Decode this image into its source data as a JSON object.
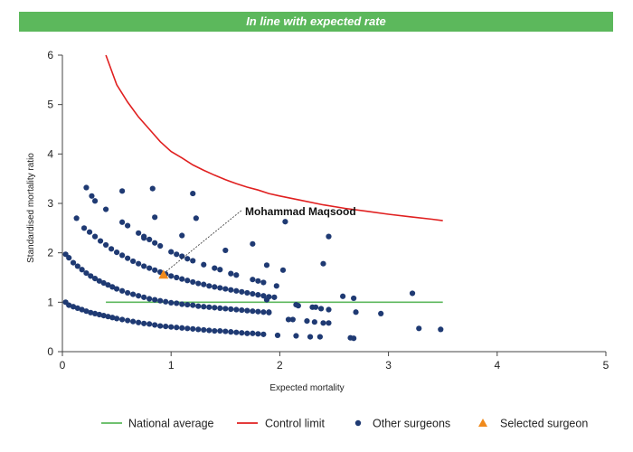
{
  "banner": {
    "text": "In line with expected rate",
    "color": "#5cb85c"
  },
  "colors": {
    "national": "#5cb85c",
    "control": "#e02020",
    "others": "#1f3a73",
    "selected": "#f08a1c"
  },
  "chart_data": {
    "type": "scatter",
    "xlabel": "Expected mortality",
    "ylabel": "Standardised mortality ratio",
    "xlim": [
      0,
      5
    ],
    "ylim": [
      0,
      6
    ],
    "xticks": [
      "0",
      "1",
      "2",
      "3",
      "4",
      "5"
    ],
    "yticks": [
      "0",
      "1",
      "2",
      "3",
      "4",
      "5",
      "6"
    ],
    "grid": false,
    "legend_position": "bottom",
    "legend": [
      "National average",
      "Control limit",
      "Other surgeons",
      "Selected surgeon"
    ],
    "national_average": {
      "name": "National average",
      "y": 1,
      "x_range": [
        0.4,
        3.5
      ]
    },
    "control_limit": {
      "name": "Control limit",
      "points": [
        [
          0.4,
          6.0
        ],
        [
          0.5,
          5.4
        ],
        [
          0.6,
          5.05
        ],
        [
          0.7,
          4.75
        ],
        [
          0.8,
          4.5
        ],
        [
          0.9,
          4.25
        ],
        [
          1.0,
          4.05
        ],
        [
          1.1,
          3.92
        ],
        [
          1.2,
          3.78
        ],
        [
          1.3,
          3.67
        ],
        [
          1.4,
          3.57
        ],
        [
          1.5,
          3.48
        ],
        [
          1.6,
          3.4
        ],
        [
          1.7,
          3.33
        ],
        [
          1.8,
          3.27
        ],
        [
          1.9,
          3.2
        ],
        [
          2.0,
          3.15
        ],
        [
          2.2,
          3.06
        ],
        [
          2.4,
          2.97
        ],
        [
          2.6,
          2.9
        ],
        [
          2.8,
          2.84
        ],
        [
          3.0,
          2.78
        ],
        [
          3.2,
          2.73
        ],
        [
          3.4,
          2.68
        ],
        [
          3.5,
          2.65
        ]
      ]
    },
    "selected_surgeon": {
      "name": "Mohammad Maqsood",
      "x": 0.93,
      "y": 1.55
    },
    "other_surgeons": [
      [
        0.03,
        1.0
      ],
      [
        0.06,
        0.94
      ],
      [
        0.1,
        0.91
      ],
      [
        0.14,
        0.88
      ],
      [
        0.18,
        0.85
      ],
      [
        0.22,
        0.82
      ],
      [
        0.26,
        0.79
      ],
      [
        0.3,
        0.77
      ],
      [
        0.34,
        0.75
      ],
      [
        0.38,
        0.73
      ],
      [
        0.42,
        0.71
      ],
      [
        0.46,
        0.69
      ],
      [
        0.5,
        0.67
      ],
      [
        0.55,
        0.65
      ],
      [
        0.6,
        0.63
      ],
      [
        0.65,
        0.61
      ],
      [
        0.7,
        0.59
      ],
      [
        0.75,
        0.57
      ],
      [
        0.8,
        0.56
      ],
      [
        0.85,
        0.54
      ],
      [
        0.9,
        0.52
      ],
      [
        0.95,
        0.51
      ],
      [
        1.0,
        0.5
      ],
      [
        1.05,
        0.49
      ],
      [
        1.1,
        0.48
      ],
      [
        1.15,
        0.47
      ],
      [
        1.2,
        0.46
      ],
      [
        1.25,
        0.45
      ],
      [
        1.3,
        0.44
      ],
      [
        1.35,
        0.43
      ],
      [
        1.4,
        0.42
      ],
      [
        1.45,
        0.42
      ],
      [
        1.5,
        0.41
      ],
      [
        1.55,
        0.4
      ],
      [
        1.6,
        0.39
      ],
      [
        1.65,
        0.38
      ],
      [
        1.7,
        0.37
      ],
      [
        1.75,
        0.37
      ],
      [
        1.8,
        0.36
      ],
      [
        1.85,
        0.35
      ],
      [
        0.03,
        1.97
      ],
      [
        0.06,
        1.9
      ],
      [
        0.1,
        1.8
      ],
      [
        0.14,
        1.73
      ],
      [
        0.18,
        1.66
      ],
      [
        0.22,
        1.59
      ],
      [
        0.26,
        1.53
      ],
      [
        0.3,
        1.48
      ],
      [
        0.34,
        1.43
      ],
      [
        0.38,
        1.39
      ],
      [
        0.42,
        1.35
      ],
      [
        0.46,
        1.31
      ],
      [
        0.5,
        1.27
      ],
      [
        0.55,
        1.23
      ],
      [
        0.6,
        1.19
      ],
      [
        0.65,
        1.16
      ],
      [
        0.7,
        1.13
      ],
      [
        0.75,
        1.1
      ],
      [
        0.8,
        1.07
      ],
      [
        0.85,
        1.05
      ],
      [
        0.9,
        1.03
      ],
      [
        0.95,
        1.01
      ],
      [
        1.0,
        0.99
      ],
      [
        1.05,
        0.98
      ],
      [
        1.1,
        0.96
      ],
      [
        1.15,
        0.95
      ],
      [
        1.2,
        0.94
      ],
      [
        1.25,
        0.92
      ],
      [
        1.3,
        0.91
      ],
      [
        1.35,
        0.9
      ],
      [
        1.4,
        0.89
      ],
      [
        1.45,
        0.88
      ],
      [
        1.5,
        0.87
      ],
      [
        1.55,
        0.86
      ],
      [
        1.6,
        0.85
      ],
      [
        1.65,
        0.84
      ],
      [
        1.7,
        0.83
      ],
      [
        1.75,
        0.82
      ],
      [
        1.8,
        0.81
      ],
      [
        1.85,
        0.8
      ],
      [
        1.9,
        0.79
      ],
      [
        0.2,
        2.5
      ],
      [
        0.25,
        2.42
      ],
      [
        0.3,
        2.33
      ],
      [
        0.35,
        2.24
      ],
      [
        0.4,
        2.16
      ],
      [
        0.45,
        2.08
      ],
      [
        0.5,
        2.01
      ],
      [
        0.55,
        1.95
      ],
      [
        0.6,
        1.89
      ],
      [
        0.65,
        1.83
      ],
      [
        0.7,
        1.78
      ],
      [
        0.75,
        1.73
      ],
      [
        0.8,
        1.69
      ],
      [
        0.85,
        1.65
      ],
      [
        0.9,
        1.61
      ],
      [
        0.95,
        1.57
      ],
      [
        1.0,
        1.53
      ],
      [
        1.05,
        1.5
      ],
      [
        1.1,
        1.47
      ],
      [
        1.15,
        1.44
      ],
      [
        1.2,
        1.41
      ],
      [
        1.25,
        1.38
      ],
      [
        1.3,
        1.36
      ],
      [
        1.35,
        1.33
      ],
      [
        1.4,
        1.31
      ],
      [
        1.45,
        1.29
      ],
      [
        1.5,
        1.27
      ],
      [
        1.55,
        1.25
      ],
      [
        1.6,
        1.23
      ],
      [
        1.65,
        1.21
      ],
      [
        1.7,
        1.19
      ],
      [
        1.75,
        1.17
      ],
      [
        1.8,
        1.15
      ],
      [
        1.85,
        1.13
      ],
      [
        1.9,
        1.11
      ],
      [
        1.95,
        1.1
      ],
      [
        0.55,
        2.62
      ],
      [
        0.6,
        2.55
      ],
      [
        0.7,
        2.4
      ],
      [
        0.75,
        2.33
      ],
      [
        0.8,
        2.27
      ],
      [
        0.85,
        2.2
      ],
      [
        0.9,
        2.14
      ],
      [
        1.0,
        2.02
      ],
      [
        1.05,
        1.97
      ],
      [
        1.1,
        1.93
      ],
      [
        1.15,
        1.88
      ],
      [
        1.2,
        1.84
      ],
      [
        1.3,
        1.76
      ],
      [
        1.4,
        1.69
      ],
      [
        1.45,
        1.66
      ],
      [
        1.55,
        1.58
      ],
      [
        1.6,
        1.55
      ],
      [
        1.75,
        1.46
      ],
      [
        1.8,
        1.43
      ],
      [
        1.85,
        1.4
      ],
      [
        0.22,
        3.32
      ],
      [
        0.27,
        3.15
      ],
      [
        0.3,
        3.05
      ],
      [
        0.4,
        2.88
      ],
      [
        0.55,
        3.25
      ],
      [
        0.83,
        3.3
      ],
      [
        1.2,
        3.2
      ],
      [
        0.13,
        2.7
      ],
      [
        0.85,
        2.72
      ],
      [
        1.23,
        2.7
      ],
      [
        2.05,
        2.63
      ],
      [
        1.1,
        2.35
      ],
      [
        1.5,
        2.05
      ],
      [
        2.45,
        2.33
      ],
      [
        1.75,
        2.18
      ],
      [
        0.75,
        2.3
      ],
      [
        1.88,
        1.75
      ],
      [
        2.4,
        1.78
      ],
      [
        2.03,
        1.65
      ],
      [
        1.97,
        1.33
      ],
      [
        1.88,
        1.05
      ],
      [
        1.9,
        0.8
      ],
      [
        2.15,
        0.95
      ],
      [
        2.17,
        0.93
      ],
      [
        2.08,
        0.65
      ],
      [
        2.12,
        0.65
      ],
      [
        2.25,
        0.62
      ],
      [
        2.3,
        0.9
      ],
      [
        2.33,
        0.9
      ],
      [
        2.38,
        0.87
      ],
      [
        2.45,
        0.85
      ],
      [
        2.32,
        0.6
      ],
      [
        2.4,
        0.58
      ],
      [
        2.45,
        0.58
      ],
      [
        2.58,
        1.12
      ],
      [
        2.68,
        1.08
      ],
      [
        2.7,
        0.8
      ],
      [
        2.93,
        0.77
      ],
      [
        3.22,
        1.18
      ],
      [
        3.28,
        0.47
      ],
      [
        3.48,
        0.45
      ],
      [
        2.65,
        0.28
      ],
      [
        2.68,
        0.27
      ],
      [
        2.28,
        0.3
      ],
      [
        2.37,
        0.3
      ],
      [
        2.15,
        0.32
      ],
      [
        1.98,
        0.33
      ]
    ]
  }
}
